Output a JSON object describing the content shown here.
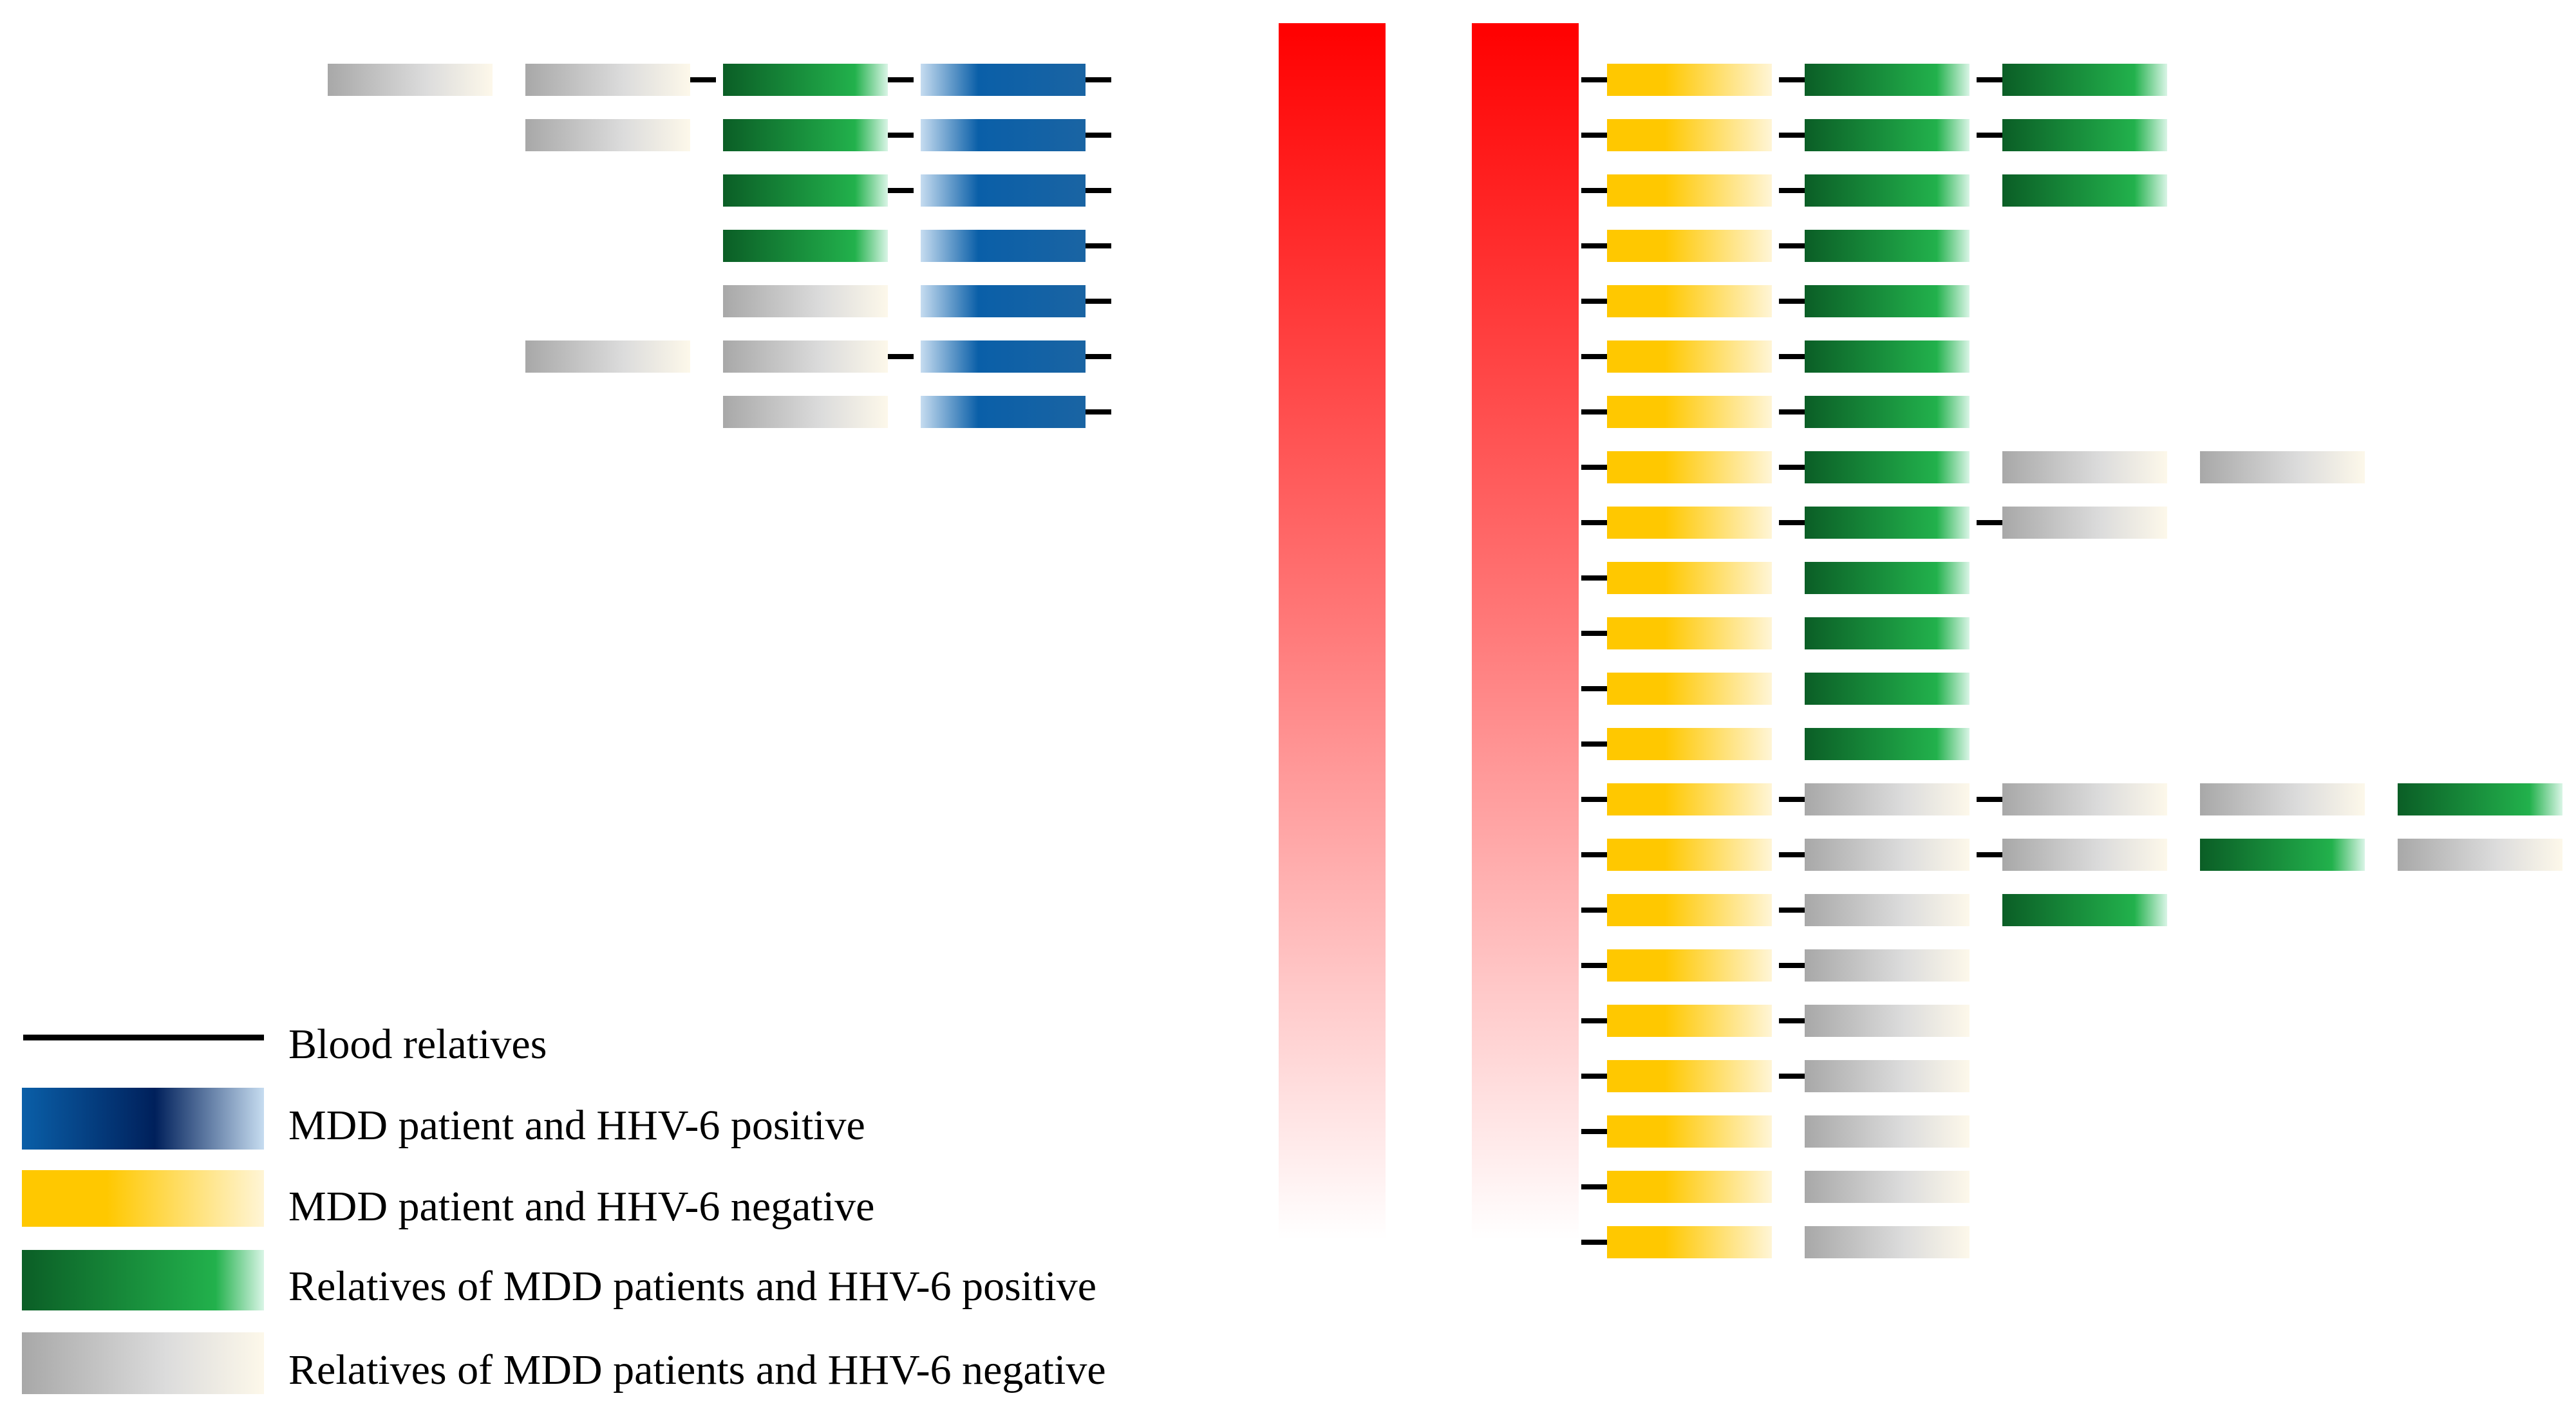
{
  "colors": {
    "blood_line": "#000000",
    "red_bar_top": "#ff0000",
    "red_bar_bottom": "#ffffff",
    "blue_dark": "#0a5fa8",
    "blue_light": "#c6dcf0",
    "blue_navy": "#00205b",
    "yellow": "#ffc800",
    "yellow_light": "#fff5d6",
    "green_dark": "#0b5e26",
    "green_light": "#d9f5e6",
    "green_mid": "#22b14c",
    "gray": "#a8a8a8",
    "gray_light": "#fdf8ea"
  },
  "legend": {
    "blood_relatives": "Blood relatives",
    "mdd_positive": "MDD patient and HHV-6 positive",
    "mdd_negative": "MDD patient and HHV-6 negative",
    "relatives_positive": "Relatives of MDD patients and HHV-6 positive",
    "relatives_negative": "Relatives of MDD patients and HHV-6 negative"
  },
  "left_group": {
    "description_codes": "B = MDD patient HHV-6 positive, G = relative HHV-6 positive, X = relative HHV-6 negative, - = empty; index 0 nearest the bar",
    "rows": [
      {
        "members": [
          "B",
          "G",
          "X",
          "X"
        ],
        "links": [
          true,
          true,
          true,
          false
        ]
      },
      {
        "members": [
          "B",
          "G",
          "X"
        ],
        "links": [
          true,
          true,
          false
        ]
      },
      {
        "members": [
          "B",
          "G"
        ],
        "links": [
          true,
          true
        ]
      },
      {
        "members": [
          "B",
          "G"
        ],
        "links": [
          true,
          false
        ]
      },
      {
        "members": [
          "B",
          "X"
        ],
        "links": [
          true,
          false
        ]
      },
      {
        "members": [
          "B",
          "X",
          "X"
        ],
        "links": [
          true,
          true,
          false
        ]
      },
      {
        "members": [
          "B",
          "X"
        ],
        "links": [
          true,
          false
        ]
      }
    ]
  },
  "right_group": {
    "description_codes": "Y = MDD patient HHV-6 negative, G = relative HHV-6 positive, X = relative HHV-6 negative, - = empty; index 0 nearest the bar",
    "rows": [
      {
        "members": [
          "Y",
          "G",
          "G"
        ],
        "links": [
          true,
          true,
          true
        ]
      },
      {
        "members": [
          "Y",
          "G",
          "G"
        ],
        "links": [
          true,
          true,
          true
        ]
      },
      {
        "members": [
          "Y",
          "G",
          "G"
        ],
        "links": [
          true,
          true,
          false
        ]
      },
      {
        "members": [
          "Y",
          "G"
        ],
        "links": [
          true,
          true
        ]
      },
      {
        "members": [
          "Y",
          "G"
        ],
        "links": [
          true,
          true
        ]
      },
      {
        "members": [
          "Y",
          "G"
        ],
        "links": [
          true,
          true
        ]
      },
      {
        "members": [
          "Y",
          "G"
        ],
        "links": [
          true,
          true
        ]
      },
      {
        "members": [
          "Y",
          "G",
          "X",
          "X"
        ],
        "links": [
          true,
          true,
          false,
          false
        ]
      },
      {
        "members": [
          "Y",
          "G",
          "X"
        ],
        "links": [
          true,
          true,
          true
        ]
      },
      {
        "members": [
          "Y",
          "G"
        ],
        "links": [
          true,
          false
        ]
      },
      {
        "members": [
          "Y",
          "G"
        ],
        "links": [
          true,
          false
        ]
      },
      {
        "members": [
          "Y",
          "G"
        ],
        "links": [
          true,
          false
        ]
      },
      {
        "members": [
          "Y",
          "G"
        ],
        "links": [
          true,
          false
        ]
      },
      {
        "members": [
          "Y",
          "X",
          "X",
          "X",
          "G"
        ],
        "links": [
          true,
          true,
          true,
          false,
          false
        ]
      },
      {
        "members": [
          "Y",
          "X",
          "X",
          "G",
          "X"
        ],
        "links": [
          true,
          true,
          true,
          false,
          false
        ]
      },
      {
        "members": [
          "Y",
          "X",
          "G"
        ],
        "links": [
          true,
          true,
          false
        ]
      },
      {
        "members": [
          "Y",
          "X"
        ],
        "links": [
          true,
          true
        ]
      },
      {
        "members": [
          "Y",
          "X"
        ],
        "links": [
          true,
          true
        ]
      },
      {
        "members": [
          "Y",
          "X"
        ],
        "links": [
          true,
          true
        ]
      },
      {
        "members": [
          "Y",
          "X"
        ],
        "links": [
          true,
          false
        ]
      },
      {
        "members": [
          "Y",
          "X"
        ],
        "links": [
          true,
          false
        ]
      },
      {
        "members": [
          "Y",
          "X"
        ],
        "links": [
          true,
          false
        ]
      }
    ]
  }
}
